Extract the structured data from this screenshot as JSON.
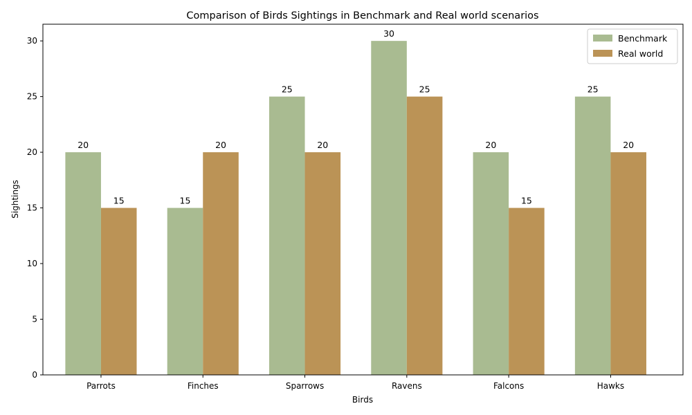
{
  "chart_data": {
    "type": "bar",
    "title": "Comparison of Birds Sightings in Benchmark and Real world scenarios",
    "xlabel": "Birds",
    "ylabel": "Sightings",
    "categories": [
      "Parrots",
      "Finches",
      "Sparrows",
      "Ravens",
      "Falcons",
      "Hawks"
    ],
    "series": [
      {
        "name": "Benchmark",
        "values": [
          20,
          15,
          25,
          30,
          20,
          25
        ],
        "color": "#a9bb91"
      },
      {
        "name": "Real world",
        "values": [
          15,
          20,
          20,
          25,
          15,
          20
        ],
        "color": "#bb9356"
      }
    ],
    "ylim": [
      0,
      31.5
    ],
    "yticks": [
      0,
      5,
      10,
      15,
      20,
      25,
      30
    ],
    "grid": false,
    "legend_position": "top-right",
    "data_labels": true
  }
}
